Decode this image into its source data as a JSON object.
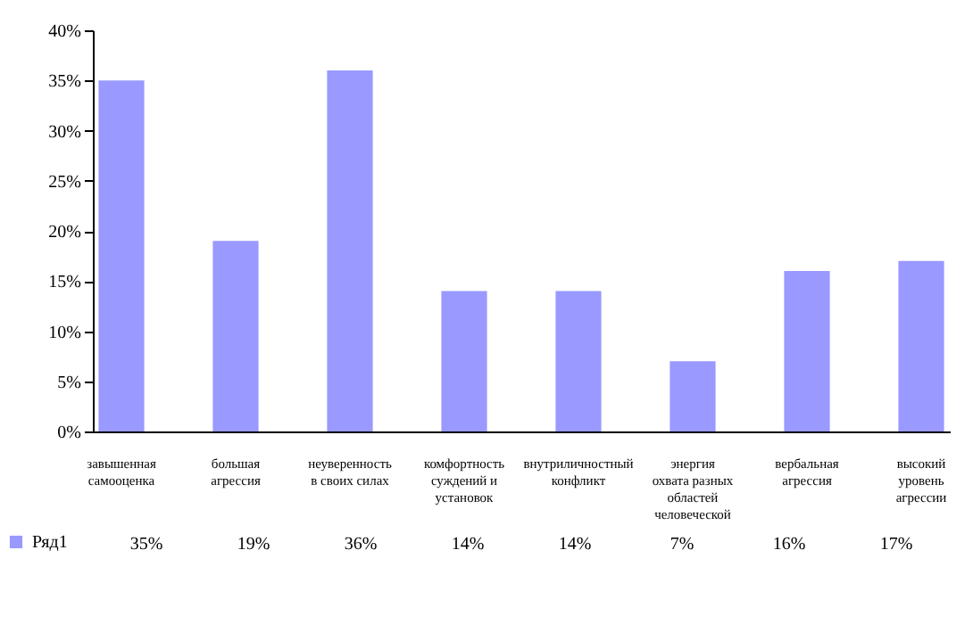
{
  "chart_data": {
    "type": "bar",
    "categories": [
      "завышенная самооценка",
      "большая агрессия",
      "неуверенность в своих силах",
      "комфортность суждений и установок",
      "внутриличностный конфликт",
      "энергия охвата разных областей человеческой",
      "вербальная агрессия",
      "высокий уровень агрессии"
    ],
    "series": [
      {
        "name": "Ряд1",
        "color": "#9999ff",
        "values": [
          35,
          19,
          36,
          14,
          14,
          7,
          16,
          17
        ],
        "value_labels": [
          "35%",
          "19%",
          "36%",
          "14%",
          "14%",
          "7%",
          "16%",
          "17%"
        ]
      }
    ],
    "ylim": [
      0,
      40
    ],
    "yticks": [
      {
        "value": 0,
        "label": "0%"
      },
      {
        "value": 5,
        "label": "5%"
      },
      {
        "value": 10,
        "label": "10%"
      },
      {
        "value": 15,
        "label": "15%"
      },
      {
        "value": 20,
        "label": "20%"
      },
      {
        "value": 25,
        "label": "25%"
      },
      {
        "value": 30,
        "label": "30%"
      },
      {
        "value": 35,
        "label": "35%"
      },
      {
        "value": 40,
        "label": "40%"
      }
    ],
    "grid": false,
    "legend": "bottom left"
  }
}
